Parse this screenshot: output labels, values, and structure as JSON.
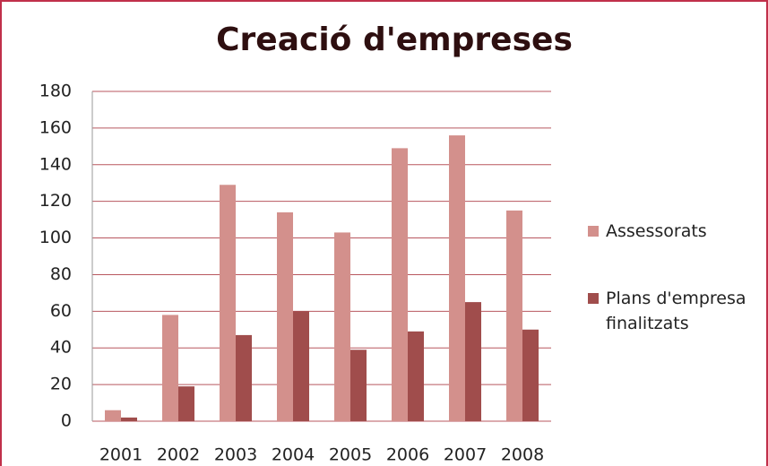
{
  "chart_data": {
    "type": "bar",
    "title": "Creació d'empreses",
    "categories": [
      "2001",
      "2002",
      "2003",
      "2004",
      "2005",
      "2006",
      "2007",
      "2008"
    ],
    "series": [
      {
        "name": "Assessorats",
        "color": "#d3908c",
        "values": [
          6,
          58,
          129,
          114,
          103,
          149,
          156,
          115
        ]
      },
      {
        "name": "Plans d'empresa finalitzats",
        "color": "#a04d4c",
        "values": [
          2,
          19,
          47,
          60,
          39,
          49,
          65,
          50
        ]
      }
    ],
    "ylim": [
      0,
      180
    ],
    "yticks": [
      0,
      20,
      40,
      60,
      80,
      100,
      120,
      140,
      160,
      180
    ],
    "grid": true,
    "legend": "right"
  }
}
